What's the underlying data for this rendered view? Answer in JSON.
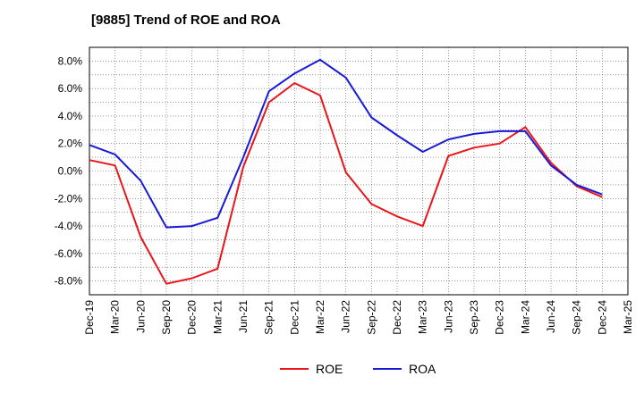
{
  "chart_data": {
    "type": "line",
    "title": "[9885]  Trend of ROE and ROA",
    "xlabel": "",
    "ylabel": "",
    "categories": [
      "Dec-19",
      "Mar-20",
      "Jun-20",
      "Sep-20",
      "Dec-20",
      "Mar-21",
      "Jun-21",
      "Sep-21",
      "Dec-21",
      "Mar-22",
      "Jun-22",
      "Sep-22",
      "Dec-22",
      "Mar-23",
      "Jun-23",
      "Sep-23",
      "Dec-23",
      "Mar-24",
      "Jun-24",
      "Sep-24",
      "Dec-24",
      "Mar-25"
    ],
    "ylim": [
      -9.0,
      9.0
    ],
    "yticks": [
      -8.0,
      -6.0,
      -4.0,
      -2.0,
      0.0,
      2.0,
      4.0,
      6.0,
      8.0
    ],
    "ytick_labels": [
      "-8.0%",
      "-6.0%",
      "-4.0%",
      "-2.0%",
      "0.0%",
      "2.0%",
      "4.0%",
      "6.0%",
      "8.0%"
    ],
    "grid": true,
    "legend_position": "bottom",
    "series": [
      {
        "name": "ROE",
        "color": "#e8161b",
        "values": [
          0.8,
          0.4,
          -4.8,
          -8.2,
          -7.8,
          -7.1,
          0.3,
          5.0,
          6.4,
          5.5,
          -0.1,
          -2.4,
          -3.3,
          -4.0,
          1.1,
          1.7,
          2.0,
          3.2,
          0.6,
          -1.1,
          -1.9,
          null
        ]
      },
      {
        "name": "ROA",
        "color": "#1a19d6",
        "values": [
          1.9,
          1.2,
          -0.7,
          -4.1,
          -4.0,
          -3.4,
          1.0,
          5.8,
          7.1,
          8.1,
          6.8,
          3.9,
          2.6,
          1.4,
          2.3,
          2.7,
          2.9,
          2.9,
          0.4,
          -1.0,
          -1.7,
          null
        ]
      }
    ]
  }
}
